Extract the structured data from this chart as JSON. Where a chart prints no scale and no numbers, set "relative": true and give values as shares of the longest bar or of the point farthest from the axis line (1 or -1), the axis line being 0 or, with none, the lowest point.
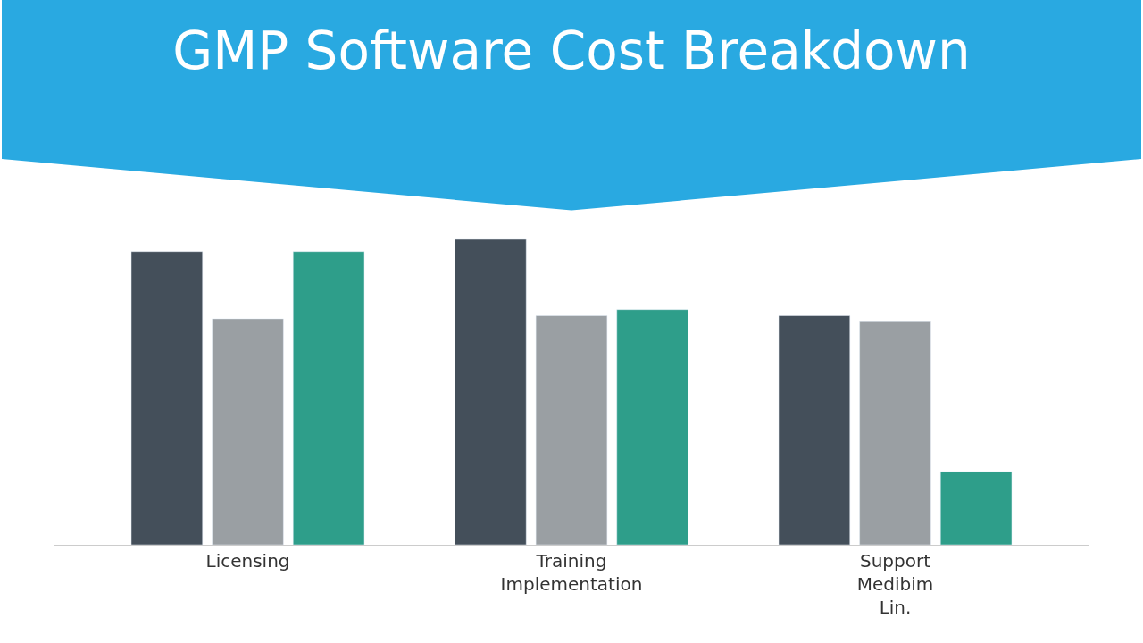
{
  "chart_data": {
    "type": "bar",
    "title": "GMP Software Cost Breakdown",
    "relative": true,
    "categories": [
      "Licensing",
      "Training\nImplementation",
      "Support\nMedibim\nLin."
    ],
    "series": [
      {
        "color": "#444f5a",
        "values": [
          0.96,
          1.0,
          0.75
        ]
      },
      {
        "color": "#9a9fa3",
        "values": [
          0.74,
          0.75,
          0.73
        ]
      },
      {
        "color": "#2e9e8a",
        "values": [
          0.96,
          0.77,
          0.24
        ]
      }
    ],
    "legend": false
  }
}
